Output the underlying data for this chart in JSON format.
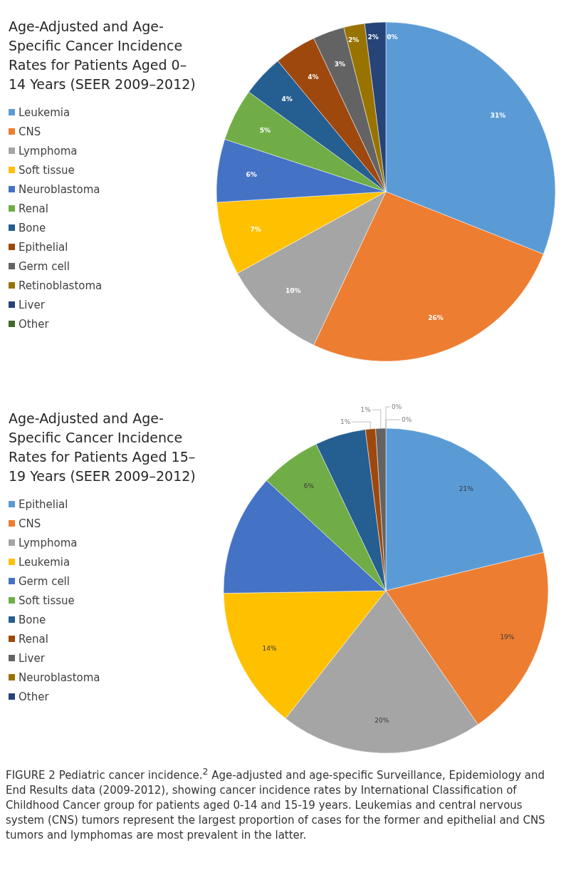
{
  "chart_data": [
    {
      "type": "pie",
      "title": "Age-Adjusted and Age-Specific Cancer Incidence Rates for Patients Aged 0–14 Years (SEER 2009–2012)",
      "legend": "left",
      "categories": [
        "Leukemia",
        "CNS",
        "Lymphoma",
        "Soft tissue",
        "Neuroblastoma",
        "Renal",
        "Bone",
        "Epithelial",
        "Germ cell",
        "Retinoblastoma",
        "Liver",
        "Other"
      ],
      "values": [
        31,
        26,
        10,
        7,
        6,
        5,
        4,
        4,
        3,
        2,
        2,
        0
      ],
      "value_labels": [
        "31%",
        "26%",
        "10%",
        "7%",
        "6%",
        "5%",
        "4%",
        "4%",
        "3%",
        "2%",
        "2%",
        "0%"
      ],
      "colors": [
        "#5b9bd5",
        "#ed7d31",
        "#a5a5a5",
        "#ffc000",
        "#4472c4",
        "#70ad47",
        "#255e91",
        "#9e480e",
        "#636363",
        "#997300",
        "#264478",
        "#43682b"
      ]
    },
    {
      "type": "pie",
      "title": "Age-Adjusted and Age-Specific Cancer Incidence Rates for Patients Aged 15–19 Years (SEER 2009–2012)",
      "legend": "left",
      "categories": [
        "Epithelial",
        "CNS",
        "Lymphoma",
        "Leukemia",
        "Germ cell",
        "Soft tissue",
        "Bone",
        "Renal",
        "Liver",
        "Neuroblastoma",
        "Other"
      ],
      "values": [
        21,
        19,
        20,
        14,
        12,
        6,
        5,
        1,
        1,
        0,
        0
      ],
      "value_labels": [
        "21%",
        "19%",
        "20%",
        "14%",
        null,
        "6%",
        null,
        "1%",
        "1%",
        "0%",
        "0%"
      ],
      "colors": [
        "#5b9bd5",
        "#ed7d31",
        "#a5a5a5",
        "#ffc000",
        "#4472c4",
        "#70ad47",
        "#255e91",
        "#9e480e",
        "#636363",
        "#997300",
        "#264478"
      ],
      "annotations": [
        "FIGURE 2 Pediatric cancer incidence.$^{2}$ Age-adjusted and age-specific Surveillance, Epidemiology and End Results data (2009-2012), showing cancer incidence rates by International Classification of Childhood Cancer group for patients aged 0-14 and 15-19 years. Leukemias and central nervous system (CNS) tumors represent the largest proportion of cases for the former and epithelial and CNS tumors and lymphomas are most prevalent in the latter."
      ]
    }
  ]
}
